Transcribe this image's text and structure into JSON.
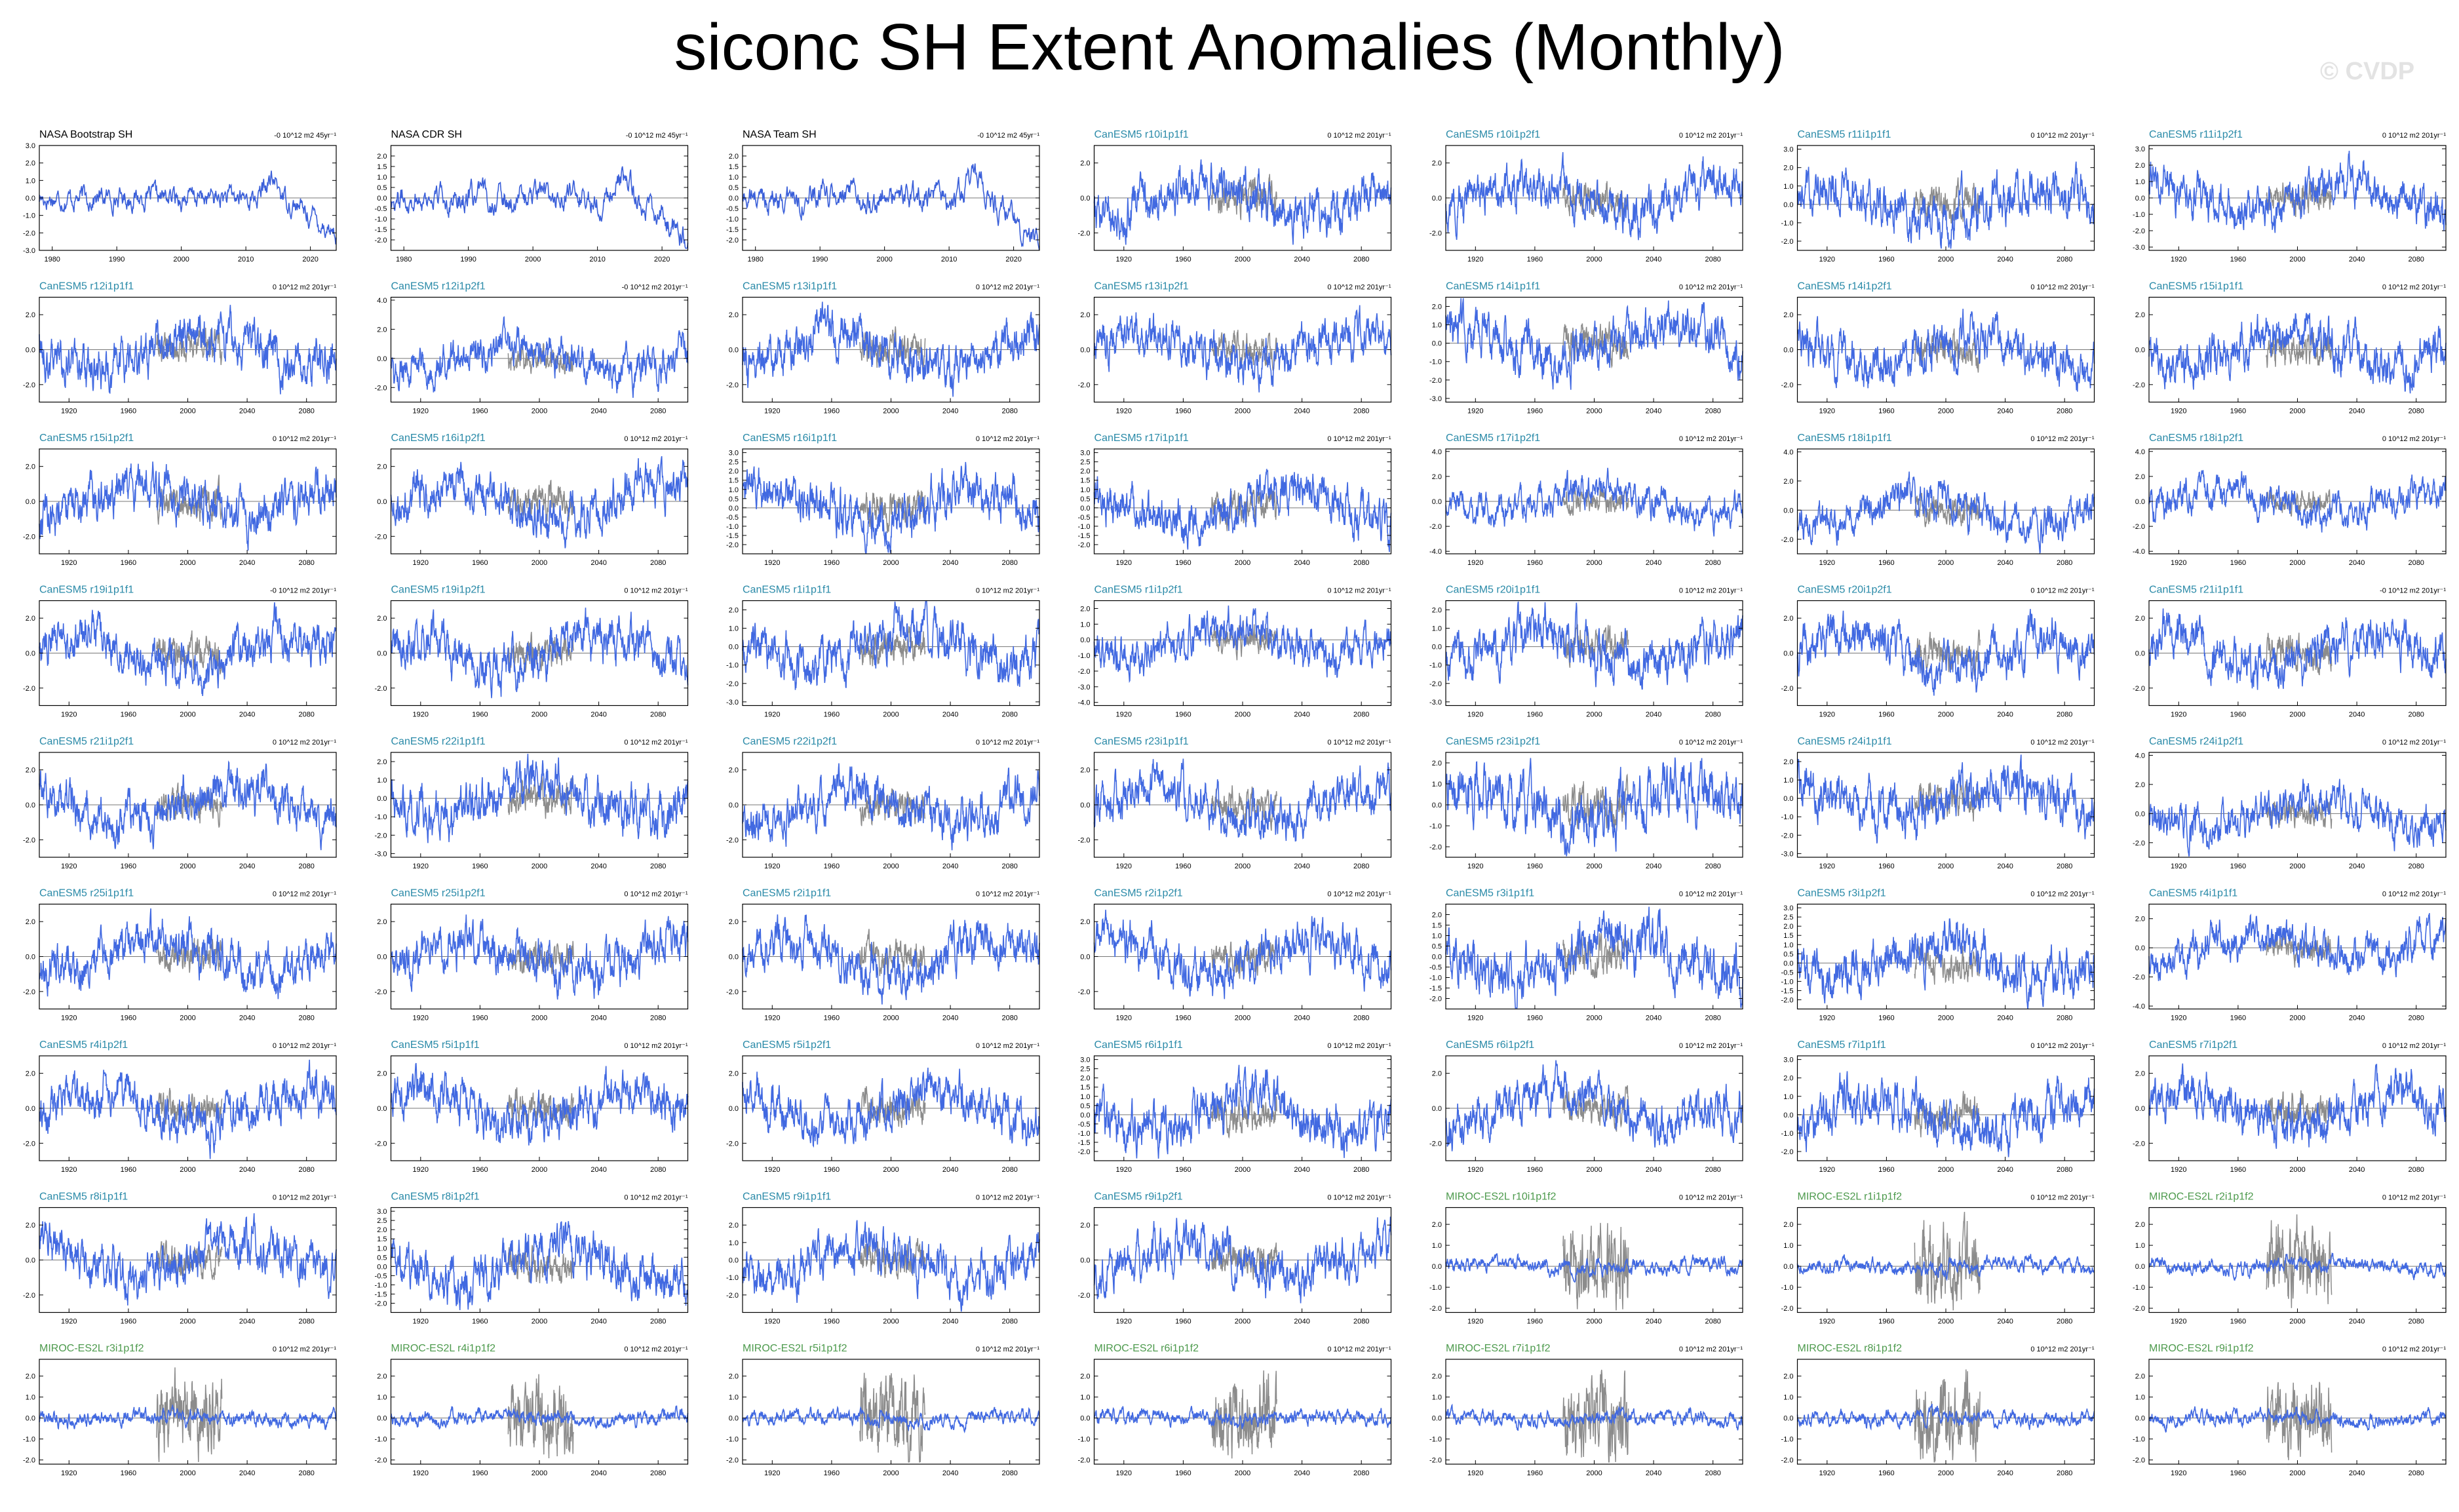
{
  "page": {
    "title": "siconc SH Extent Anomalies (Monthly)",
    "watermark": "© CVDP"
  },
  "colors": {
    "obs_line": "#3a5fd9",
    "model_line": "#4169e1",
    "obs_overlay": "#8c8c8c",
    "canesm_title": "#2a8aa8",
    "miroc_title": "#4d9a4d",
    "obs_title": "#000000"
  },
  "chart_data": [
    {
      "type": "line",
      "title": "NASA Bootstrap SH",
      "trend": "-0 10^12 m2 45yr⁻¹",
      "source": "obs",
      "xlim": [
        1978,
        2024
      ],
      "xticks": [
        1980,
        1990,
        2000,
        2010,
        2020
      ],
      "ylim": [
        -3,
        3
      ],
      "yticks": [
        -3,
        -2,
        -1,
        0,
        1,
        2,
        3
      ]
    },
    {
      "type": "line",
      "title": "NASA CDR SH",
      "trend": "-0 10^12 m2 45yr⁻¹",
      "source": "obs",
      "xlim": [
        1978,
        2024
      ],
      "xticks": [
        1980,
        1990,
        2000,
        2010,
        2020
      ],
      "ylim": [
        -2.5,
        2.5
      ],
      "yticks": [
        -2,
        -1.5,
        -1,
        -0.5,
        0,
        0.5,
        1,
        1.5,
        2
      ]
    },
    {
      "type": "line",
      "title": "NASA Team SH",
      "trend": "-0 10^12 m2 45yr⁻¹",
      "source": "obs",
      "xlim": [
        1978,
        2024
      ],
      "xticks": [
        1980,
        1990,
        2000,
        2010,
        2020
      ],
      "ylim": [
        -2.5,
        2.5
      ],
      "yticks": [
        -2,
        -1.5,
        -1,
        -0.5,
        0,
        0.5,
        1,
        1.5,
        2
      ]
    },
    {
      "type": "line",
      "title": "CanESM5 r10i1p1f1",
      "trend": "0 10^12 m2 201yr⁻¹",
      "source": "canesm",
      "ylim": [
        -3,
        3
      ],
      "yticks": [
        -2,
        0,
        2
      ]
    },
    {
      "type": "line",
      "title": "CanESM5 r10i1p2f1",
      "trend": "0 10^12 m2 201yr⁻¹",
      "source": "canesm",
      "ylim": [
        -3,
        3
      ],
      "yticks": [
        -2,
        0,
        2
      ]
    },
    {
      "type": "line",
      "title": "CanESM5 r11i1p1f1",
      "trend": "0 10^12 m2 201yr⁻¹",
      "source": "canesm",
      "ylim": [
        -2.5,
        3.2
      ],
      "yticks": [
        -2,
        -1,
        0,
        1,
        2,
        3
      ]
    },
    {
      "type": "line",
      "title": "CanESM5 r11i1p2f1",
      "trend": "0 10^12 m2 201yr⁻¹",
      "source": "canesm",
      "ylim": [
        -3.2,
        3.2
      ],
      "yticks": [
        -3,
        -2,
        -1,
        0,
        1,
        2,
        3
      ]
    },
    {
      "type": "line",
      "title": "CanESM5 r12i1p1f1",
      "trend": "0 10^12 m2 201yr⁻¹",
      "source": "canesm",
      "ylim": [
        -3,
        3
      ],
      "yticks": [
        -2,
        0,
        2
      ]
    },
    {
      "type": "line",
      "title": "CanESM5 r12i1p2f1",
      "trend": "-0 10^12 m2 201yr⁻¹",
      "source": "canesm",
      "ylim": [
        -3,
        4.2
      ],
      "yticks": [
        -2,
        0,
        2,
        4
      ]
    },
    {
      "type": "line",
      "title": "CanESM5 r13i1p1f1",
      "trend": "0 10^12 m2 201yr⁻¹",
      "source": "canesm",
      "ylim": [
        -3,
        3
      ],
      "yticks": [
        -2,
        0,
        2
      ]
    },
    {
      "type": "line",
      "title": "CanESM5 r13i1p2f1",
      "trend": "0 10^12 m2 201yr⁻¹",
      "source": "canesm",
      "ylim": [
        -3,
        3
      ],
      "yticks": [
        -2,
        0,
        2
      ]
    },
    {
      "type": "line",
      "title": "CanESM5 r14i1p1f1",
      "trend": "0 10^12 m2 201yr⁻¹",
      "source": "canesm",
      "ylim": [
        -3.2,
        2.5
      ],
      "yticks": [
        -3,
        -2,
        -1,
        0,
        1,
        2
      ]
    },
    {
      "type": "line",
      "title": "CanESM5 r14i1p2f1",
      "trend": "0 10^12 m2 201yr⁻¹",
      "source": "canesm",
      "ylim": [
        -3,
        3
      ],
      "yticks": [
        -2,
        0,
        2
      ]
    },
    {
      "type": "line",
      "title": "CanESM5 r15i1p1f1",
      "trend": "0 10^12 m2 201yr⁻¹",
      "source": "canesm",
      "ylim": [
        -3,
        3
      ],
      "yticks": [
        -2,
        0,
        2
      ]
    },
    {
      "type": "line",
      "title": "CanESM5 r15i1p2f1",
      "trend": "0 10^12 m2 201yr⁻¹",
      "source": "canesm",
      "ylim": [
        -3,
        3
      ],
      "yticks": [
        -2,
        0,
        2
      ]
    },
    {
      "type": "line",
      "title": "CanESM5 r16i1p2f1",
      "trend": "0 10^12 m2 201yr⁻¹",
      "source": "canesm",
      "ylim": [
        -3,
        3
      ],
      "yticks": [
        -2,
        0,
        2
      ]
    },
    {
      "type": "line",
      "title": "CanESM5 r16i1p1f1",
      "trend": "0 10^12 m2 201yr⁻¹",
      "source": "canesm",
      "ylim": [
        -2.5,
        3.2
      ],
      "yticks": [
        -2,
        -1.5,
        -1,
        -0.5,
        0,
        0.5,
        1,
        1.5,
        2,
        2.5,
        3
      ]
    },
    {
      "type": "line",
      "title": "CanESM5 r17i1p1f1",
      "trend": "0 10^12 m2 201yr⁻¹",
      "source": "canesm",
      "ylim": [
        -2.5,
        3.2
      ],
      "yticks": [
        -2,
        -1.5,
        -1,
        -0.5,
        0,
        0.5,
        1,
        1.5,
        2,
        2.5,
        3
      ]
    },
    {
      "type": "line",
      "title": "CanESM5 r17i1p2f1",
      "trend": "0 10^12 m2 201yr⁻¹",
      "source": "canesm",
      "ylim": [
        -4.2,
        4.2
      ],
      "yticks": [
        -4,
        -2,
        0,
        2,
        4
      ]
    },
    {
      "type": "line",
      "title": "CanESM5 r18i1p1f1",
      "trend": "0 10^12 m2 201yr⁻¹",
      "source": "canesm",
      "ylim": [
        -3,
        4.2
      ],
      "yticks": [
        -2,
        0,
        2,
        4
      ]
    },
    {
      "type": "line",
      "title": "CanESM5 r18i1p2f1",
      "trend": "0 10^12 m2 201yr⁻¹",
      "source": "canesm",
      "ylim": [
        -4.2,
        4.2
      ],
      "yticks": [
        -4,
        -2,
        0,
        2,
        4
      ]
    },
    {
      "type": "line",
      "title": "CanESM5 r19i1p1f1",
      "trend": "-0 10^12 m2 201yr⁻¹",
      "source": "canesm",
      "ylim": [
        -3,
        3
      ],
      "yticks": [
        -2,
        0,
        2
      ]
    },
    {
      "type": "line",
      "title": "CanESM5 r19i1p2f1",
      "trend": "0 10^12 m2 201yr⁻¹",
      "source": "canesm",
      "ylim": [
        -3,
        3
      ],
      "yticks": [
        -2,
        0,
        2
      ]
    },
    {
      "type": "line",
      "title": "CanESM5 r1i1p1f1",
      "trend": "0 10^12 m2 201yr⁻¹",
      "source": "canesm",
      "ylim": [
        -3.2,
        2.5
      ],
      "yticks": [
        -3,
        -2,
        -1,
        0,
        1,
        2
      ]
    },
    {
      "type": "line",
      "title": "CanESM5 r1i1p2f1",
      "trend": "0 10^12 m2 201yr⁻¹",
      "source": "canesm",
      "ylim": [
        -4.2,
        2.5
      ],
      "yticks": [
        -4,
        -3,
        -2,
        -1,
        0,
        1,
        2
      ]
    },
    {
      "type": "line",
      "title": "CanESM5 r20i1p1f1",
      "trend": "0 10^12 m2 201yr⁻¹",
      "source": "canesm",
      "ylim": [
        -3.2,
        2.5
      ],
      "yticks": [
        -3,
        -2,
        -1,
        0,
        1,
        2
      ]
    },
    {
      "type": "line",
      "title": "CanESM5 r20i1p2f1",
      "trend": "0 10^12 m2 201yr⁻¹",
      "source": "canesm",
      "ylim": [
        -3,
        3
      ],
      "yticks": [
        -2,
        0,
        2
      ]
    },
    {
      "type": "line",
      "title": "CanESM5 r21i1p1f1",
      "trend": "-0 10^12 m2 201yr⁻¹",
      "source": "canesm",
      "ylim": [
        -3,
        3
      ],
      "yticks": [
        -2,
        0,
        2
      ]
    },
    {
      "type": "line",
      "title": "CanESM5 r21i1p2f1",
      "trend": "0 10^12 m2 201yr⁻¹",
      "source": "canesm",
      "ylim": [
        -3,
        3
      ],
      "yticks": [
        -2,
        0,
        2
      ]
    },
    {
      "type": "line",
      "title": "CanESM5 r22i1p1f1",
      "trend": "0 10^12 m2 201yr⁻¹",
      "source": "canesm",
      "ylim": [
        -3.2,
        2.5
      ],
      "yticks": [
        -3,
        -2,
        -1,
        0,
        1,
        2
      ]
    },
    {
      "type": "line",
      "title": "CanESM5 r22i1p2f1",
      "trend": "0 10^12 m2 201yr⁻¹",
      "source": "canesm",
      "ylim": [
        -3,
        3
      ],
      "yticks": [
        -2,
        0,
        2
      ]
    },
    {
      "type": "line",
      "title": "CanESM5 r23i1p1f1",
      "trend": "0 10^12 m2 201yr⁻¹",
      "source": "canesm",
      "ylim": [
        -3,
        3
      ],
      "yticks": [
        -2,
        0,
        2
      ]
    },
    {
      "type": "line",
      "title": "CanESM5 r23i1p2f1",
      "trend": "0 10^12 m2 201yr⁻¹",
      "source": "canesm",
      "ylim": [
        -2.5,
        2.5
      ],
      "yticks": [
        -2,
        -1,
        0,
        1,
        2
      ]
    },
    {
      "type": "line",
      "title": "CanESM5 r24i1p1f1",
      "trend": "0 10^12 m2 201yr⁻¹",
      "source": "canesm",
      "ylim": [
        -3.2,
        2.5
      ],
      "yticks": [
        -3,
        -2,
        -1,
        0,
        1,
        2
      ]
    },
    {
      "type": "line",
      "title": "CanESM5 r24i1p2f1",
      "trend": "0 10^12 m2 201yr⁻¹",
      "source": "canesm",
      "ylim": [
        -3,
        4.2
      ],
      "yticks": [
        -2,
        0,
        2,
        4
      ]
    },
    {
      "type": "line",
      "title": "CanESM5 r25i1p1f1",
      "trend": "0 10^12 m2 201yr⁻¹",
      "source": "canesm",
      "ylim": [
        -3,
        3
      ],
      "yticks": [
        -2,
        0,
        2
      ]
    },
    {
      "type": "line",
      "title": "CanESM5 r25i1p2f1",
      "trend": "0 10^12 m2 201yr⁻¹",
      "source": "canesm",
      "ylim": [
        -3,
        3
      ],
      "yticks": [
        -2,
        0,
        2
      ]
    },
    {
      "type": "line",
      "title": "CanESM5 r2i1p1f1",
      "trend": "0 10^12 m2 201yr⁻¹",
      "source": "canesm",
      "ylim": [
        -3,
        3
      ],
      "yticks": [
        -2,
        0,
        2
      ]
    },
    {
      "type": "line",
      "title": "CanESM5 r2i1p2f1",
      "trend": "0 10^12 m2 201yr⁻¹",
      "source": "canesm",
      "ylim": [
        -3,
        3
      ],
      "yticks": [
        -2,
        0,
        2
      ]
    },
    {
      "type": "line",
      "title": "CanESM5 r3i1p1f1",
      "trend": "0 10^12 m2 201yr⁻¹",
      "source": "canesm",
      "ylim": [
        -2.5,
        2.5
      ],
      "yticks": [
        -2,
        -1.5,
        -1,
        -0.5,
        0,
        0.5,
        1,
        1.5,
        2
      ]
    },
    {
      "type": "line",
      "title": "CanESM5 r3i1p2f1",
      "trend": "0 10^12 m2 201yr⁻¹",
      "source": "canesm",
      "ylim": [
        -2.5,
        3.2
      ],
      "yticks": [
        -2,
        -1.5,
        -1,
        -0.5,
        0,
        0.5,
        1,
        1.5,
        2,
        2.5,
        3
      ]
    },
    {
      "type": "line",
      "title": "CanESM5 r4i1p1f1",
      "trend": "0 10^12 m2 201yr⁻¹",
      "source": "canesm",
      "ylim": [
        -4.2,
        3
      ],
      "yticks": [
        -4,
        -2,
        0,
        2
      ]
    },
    {
      "type": "line",
      "title": "CanESM5 r4i1p2f1",
      "trend": "0 10^12 m2 201yr⁻¹",
      "source": "canesm",
      "ylim": [
        -3,
        3
      ],
      "yticks": [
        -2,
        0,
        2
      ]
    },
    {
      "type": "line",
      "title": "CanESM5 r5i1p1f1",
      "trend": "0 10^12 m2 201yr⁻¹",
      "source": "canesm",
      "ylim": [
        -3,
        3
      ],
      "yticks": [
        -2,
        0,
        2
      ]
    },
    {
      "type": "line",
      "title": "CanESM5 r5i1p2f1",
      "trend": "0 10^12 m2 201yr⁻¹",
      "source": "canesm",
      "ylim": [
        -3,
        3
      ],
      "yticks": [
        -2,
        0,
        2
      ]
    },
    {
      "type": "line",
      "title": "CanESM5 r6i1p1f1",
      "trend": "0 10^12 m2 201yr⁻¹",
      "source": "canesm",
      "ylim": [
        -2.5,
        3.2
      ],
      "yticks": [
        -2,
        -1.5,
        -1,
        -0.5,
        0,
        0.5,
        1,
        1.5,
        2,
        2.5,
        3
      ]
    },
    {
      "type": "line",
      "title": "CanESM5 r6i1p2f1",
      "trend": "0 10^12 m2 201yr⁻¹",
      "source": "canesm",
      "ylim": [
        -3,
        3
      ],
      "yticks": [
        -2,
        0,
        2
      ]
    },
    {
      "type": "line",
      "title": "CanESM5 r7i1p1f1",
      "trend": "0 10^12 m2 201yr⁻¹",
      "source": "canesm",
      "ylim": [
        -2.5,
        3.2
      ],
      "yticks": [
        -2,
        -1,
        0,
        1,
        2,
        3
      ]
    },
    {
      "type": "line",
      "title": "CanESM5 r7i1p2f1",
      "trend": "0 10^12 m2 201yr⁻¹",
      "source": "canesm",
      "ylim": [
        -3,
        3
      ],
      "yticks": [
        -2,
        0,
        2
      ]
    },
    {
      "type": "line",
      "title": "CanESM5 r8i1p1f1",
      "trend": "0 10^12 m2 201yr⁻¹",
      "source": "canesm",
      "ylim": [
        -3,
        3
      ],
      "yticks": [
        -2,
        0,
        2
      ]
    },
    {
      "type": "line",
      "title": "CanESM5 r8i1p2f1",
      "trend": "0 10^12 m2 201yr⁻¹",
      "source": "canesm",
      "ylim": [
        -2.5,
        3.2
      ],
      "yticks": [
        -2,
        -1.5,
        -1,
        -0.5,
        0,
        0.5,
        1,
        1.5,
        2,
        2.5,
        3
      ]
    },
    {
      "type": "line",
      "title": "CanESM5 r9i1p1f1",
      "trend": "0 10^12 m2 201yr⁻¹",
      "source": "canesm",
      "ylim": [
        -3,
        3
      ],
      "yticks": [
        -2,
        -1,
        0,
        1,
        2
      ]
    },
    {
      "type": "line",
      "title": "CanESM5 r9i1p2f1",
      "trend": "0 10^12 m2 201yr⁻¹",
      "source": "canesm",
      "ylim": [
        -3,
        3
      ],
      "yticks": [
        -2,
        0,
        2
      ]
    },
    {
      "type": "line",
      "title": "MIROC-ES2L r10i1p1f2",
      "trend": "0 10^12 m2 201yr⁻¹",
      "source": "miroc",
      "ylim": [
        -2.2,
        2.8
      ],
      "yticks": [
        -2,
        -1,
        0,
        1,
        2
      ]
    },
    {
      "type": "line",
      "title": "MIROC-ES2L r1i1p1f2",
      "trend": "0 10^12 m2 201yr⁻¹",
      "source": "miroc",
      "ylim": [
        -2.2,
        2.8
      ],
      "yticks": [
        -2,
        -1,
        0,
        1,
        2
      ]
    },
    {
      "type": "line",
      "title": "MIROC-ES2L r2i1p1f2",
      "trend": "0 10^12 m2 201yr⁻¹",
      "source": "miroc",
      "ylim": [
        -2.2,
        2.8
      ],
      "yticks": [
        -2,
        -1,
        0,
        1,
        2
      ]
    },
    {
      "type": "line",
      "title": "MIROC-ES2L r3i1p1f2",
      "trend": "0 10^12 m2 201yr⁻¹",
      "source": "miroc",
      "ylim": [
        -2.2,
        2.8
      ],
      "yticks": [
        -2,
        -1,
        0,
        1,
        2
      ]
    },
    {
      "type": "line",
      "title": "MIROC-ES2L r4i1p1f2",
      "trend": "0 10^12 m2 201yr⁻¹",
      "source": "miroc",
      "ylim": [
        -2.2,
        2.8
      ],
      "yticks": [
        -2,
        -1,
        0,
        1,
        2
      ]
    },
    {
      "type": "line",
      "title": "MIROC-ES2L r5i1p1f2",
      "trend": "0 10^12 m2 201yr⁻¹",
      "source": "miroc",
      "ylim": [
        -2.2,
        2.8
      ],
      "yticks": [
        -2,
        -1,
        0,
        1,
        2
      ]
    },
    {
      "type": "line",
      "title": "MIROC-ES2L r6i1p1f2",
      "trend": "0 10^12 m2 201yr⁻¹",
      "source": "miroc",
      "ylim": [
        -2.2,
        2.8
      ],
      "yticks": [
        -2,
        -1,
        0,
        1,
        2
      ]
    },
    {
      "type": "line",
      "title": "MIROC-ES2L r7i1p1f2",
      "trend": "0 10^12 m2 201yr⁻¹",
      "source": "miroc",
      "ylim": [
        -2.2,
        2.8
      ],
      "yticks": [
        -2,
        -1,
        0,
        1,
        2
      ]
    },
    {
      "type": "line",
      "title": "MIROC-ES2L r8i1p1f2",
      "trend": "0 10^12 m2 201yr⁻¹",
      "source": "miroc",
      "ylim": [
        -2.2,
        2.8
      ],
      "yticks": [
        -2,
        -1,
        0,
        1,
        2
      ]
    },
    {
      "type": "line",
      "title": "MIROC-ES2L r9i1p1f2",
      "trend": "0 10^12 m2 201yr⁻¹",
      "source": "miroc",
      "ylim": [
        -2.2,
        2.8
      ],
      "yticks": [
        -2,
        -1,
        0,
        1,
        2
      ]
    }
  ],
  "model_axis": {
    "xlim": [
      1900,
      2100
    ],
    "xticks": [
      1920,
      1960,
      2000,
      2040,
      2080
    ]
  }
}
